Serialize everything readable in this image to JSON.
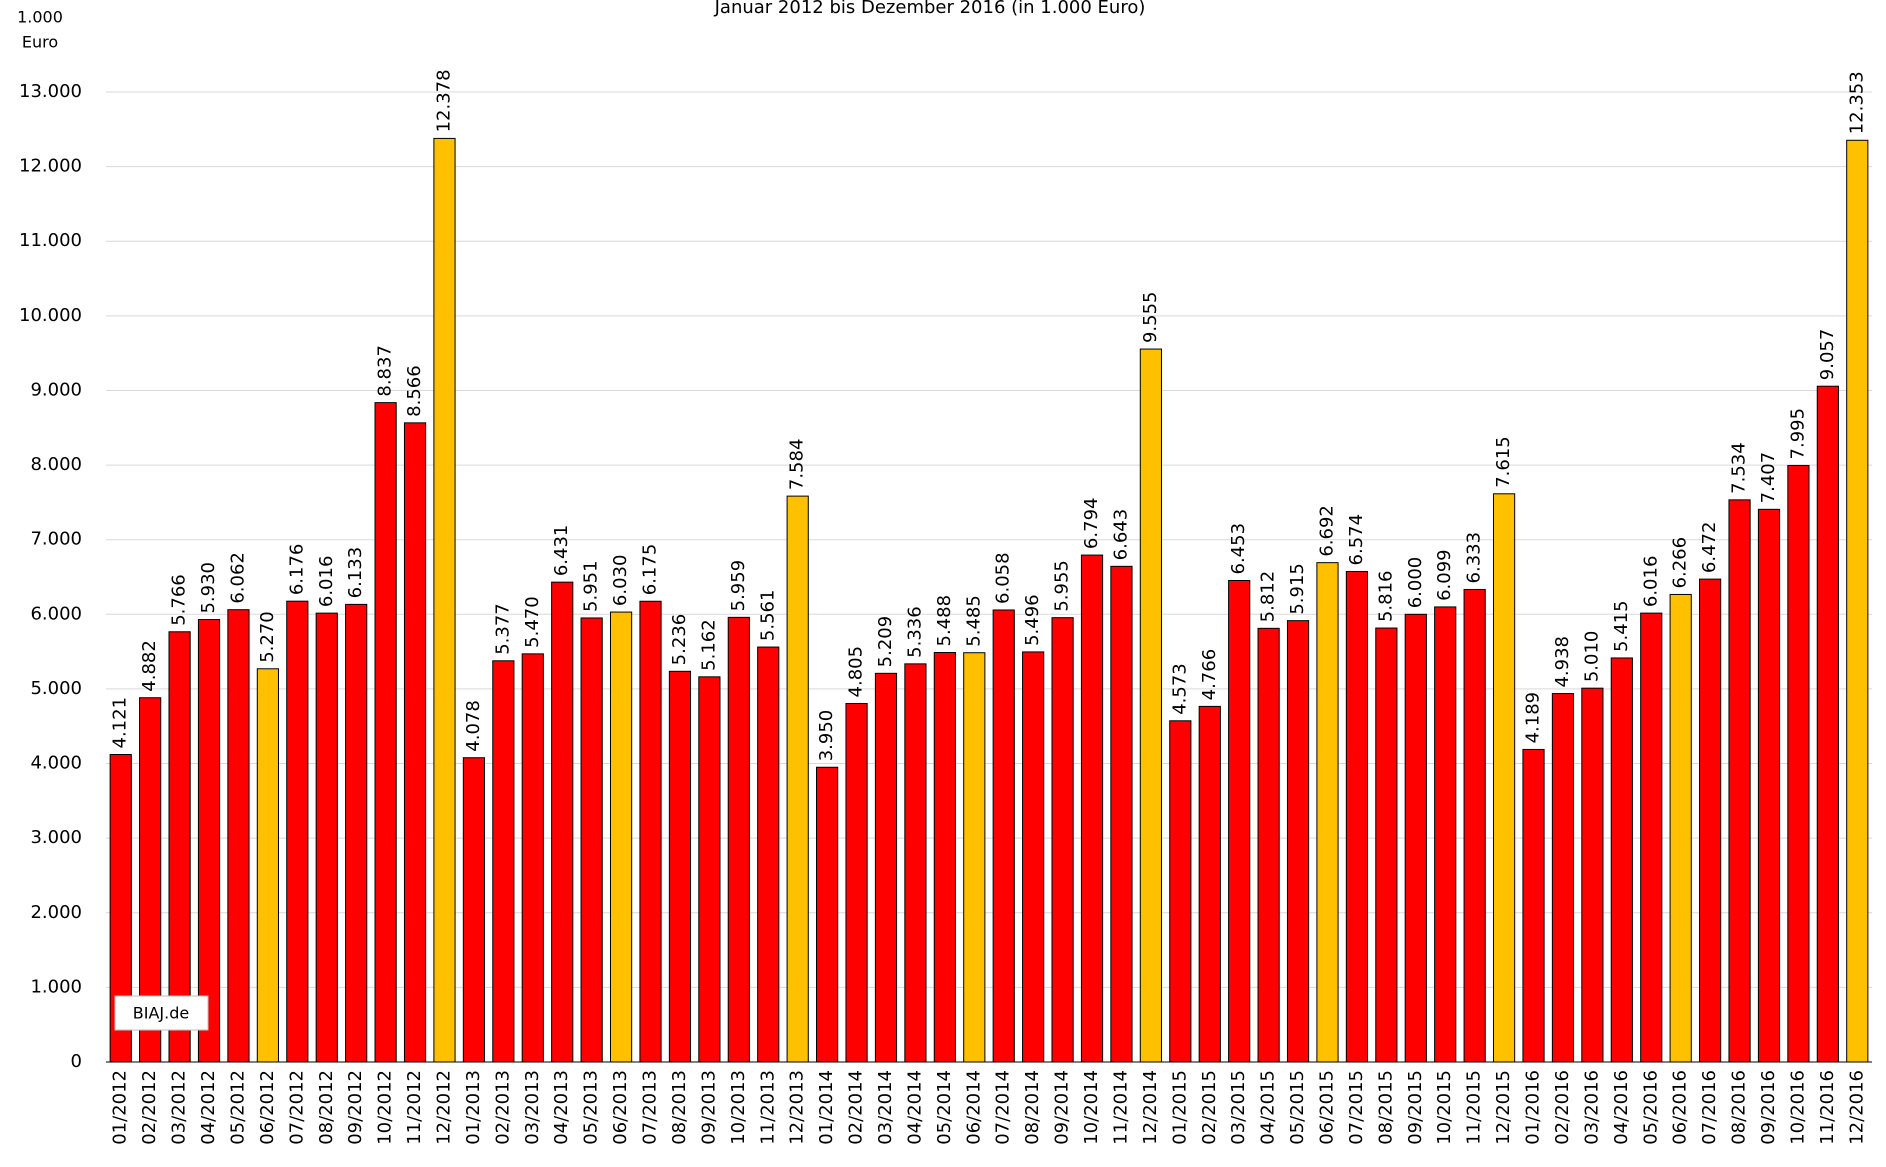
{
  "chart_data": {
    "type": "bar",
    "title": "Januar 2012 bis Dezember 2016 (in 1.000 Euro)",
    "ylabel_lines": [
      "1.000",
      "Euro"
    ],
    "annotation": "BIAJ.de",
    "categories": [
      "01/2012",
      "02/2012",
      "03/2012",
      "04/2012",
      "05/2012",
      "06/2012",
      "07/2012",
      "08/2012",
      "09/2012",
      "10/2012",
      "11/2012",
      "12/2012",
      "01/2013",
      "02/2013",
      "03/2013",
      "04/2013",
      "05/2013",
      "06/2013",
      "07/2013",
      "08/2013",
      "09/2013",
      "10/2013",
      "11/2013",
      "12/2013",
      "01/2014",
      "02/2014",
      "03/2014",
      "04/2014",
      "05/2014",
      "06/2014",
      "07/2014",
      "08/2014",
      "09/2014",
      "10/2014",
      "11/2014",
      "12/2014",
      "01/2015",
      "02/2015",
      "03/2015",
      "04/2015",
      "05/2015",
      "06/2015",
      "07/2015",
      "08/2015",
      "09/2015",
      "10/2015",
      "11/2015",
      "12/2015",
      "01/2016",
      "02/2016",
      "03/2016",
      "04/2016",
      "05/2016",
      "06/2016",
      "07/2016",
      "08/2016",
      "09/2016",
      "10/2016",
      "11/2016",
      "12/2016"
    ],
    "values": [
      4121,
      4882,
      5766,
      5930,
      6062,
      5270,
      6176,
      6016,
      6133,
      8837,
      8566,
      12378,
      4078,
      5377,
      5470,
      6431,
      5951,
      6030,
      6175,
      5236,
      5162,
      5959,
      5561,
      7584,
      3950,
      4805,
      5209,
      5336,
      5488,
      5485,
      6058,
      5496,
      5955,
      6794,
      6643,
      9555,
      4573,
      4766,
      6453,
      5812,
      5915,
      6692,
      6574,
      5816,
      6000,
      6099,
      6333,
      7615,
      4189,
      4938,
      5010,
      5415,
      6016,
      6266,
      6472,
      7534,
      7407,
      7995,
      9057,
      12353
    ],
    "value_labels": [
      "4.121",
      "4.882",
      "5.766",
      "5.930",
      "6.062",
      "5.270",
      "6.176",
      "6.016",
      "6.133",
      "8.837",
      "8.566",
      "12.378",
      "4.078",
      "5.377",
      "5.470",
      "6.431",
      "5.951",
      "6.030",
      "6.175",
      "5.236",
      "5.162",
      "5.959",
      "5.561",
      "7.584",
      "3.950",
      "4.805",
      "5.209",
      "5.336",
      "5.488",
      "5.485",
      "6.058",
      "5.496",
      "5.955",
      "6.794",
      "6.643",
      "9.555",
      "4.573",
      "4.766",
      "6.453",
      "5.812",
      "5.915",
      "6.692",
      "6.574",
      "5.816",
      "6.000",
      "6.099",
      "6.333",
      "7.615",
      "4.189",
      "4.938",
      "5.010",
      "5.415",
      "6.016",
      "6.266",
      "6.472",
      "7.534",
      "7.407",
      "7.995",
      "9.057",
      "12.353"
    ],
    "colors": [
      "#ff0000",
      "#ff0000",
      "#ff0000",
      "#ff0000",
      "#ff0000",
      "#ffc000",
      "#ff0000",
      "#ff0000",
      "#ff0000",
      "#ff0000",
      "#ff0000",
      "#ffc000",
      "#ff0000",
      "#ff0000",
      "#ff0000",
      "#ff0000",
      "#ff0000",
      "#ffc000",
      "#ff0000",
      "#ff0000",
      "#ff0000",
      "#ff0000",
      "#ff0000",
      "#ffc000",
      "#ff0000",
      "#ff0000",
      "#ff0000",
      "#ff0000",
      "#ff0000",
      "#ffc000",
      "#ff0000",
      "#ff0000",
      "#ff0000",
      "#ff0000",
      "#ff0000",
      "#ffc000",
      "#ff0000",
      "#ff0000",
      "#ff0000",
      "#ff0000",
      "#ff0000",
      "#ffc000",
      "#ff0000",
      "#ff0000",
      "#ff0000",
      "#ff0000",
      "#ff0000",
      "#ffc000",
      "#ff0000",
      "#ff0000",
      "#ff0000",
      "#ff0000",
      "#ff0000",
      "#ffc000",
      "#ff0000",
      "#ff0000",
      "#ff0000",
      "#ff0000",
      "#ff0000",
      "#ffc000"
    ],
    "ylim": [
      0,
      13000
    ],
    "yticks": [
      0,
      {
        "value": 1000,
        "label": "1.000"
      },
      {
        "value": 2000,
        "label": "2.000"
      },
      {
        "value": 3000,
        "label": "3.000"
      },
      {
        "value": 4000,
        "label": "4.000"
      },
      {
        "value": 5000,
        "label": "5.000"
      },
      {
        "value": 6000,
        "label": "6.000"
      },
      {
        "value": 7000,
        "label": "7.000"
      },
      {
        "value": 8000,
        "label": "8.000"
      },
      {
        "value": 9000,
        "label": "9.000"
      },
      {
        "value": 10000,
        "label": "10.000"
      },
      {
        "value": 11000,
        "label": "11.000"
      },
      {
        "value": 12000,
        "label": "12.000"
      },
      {
        "value": 13000,
        "label": "13.000"
      }
    ],
    "grid": true
  }
}
